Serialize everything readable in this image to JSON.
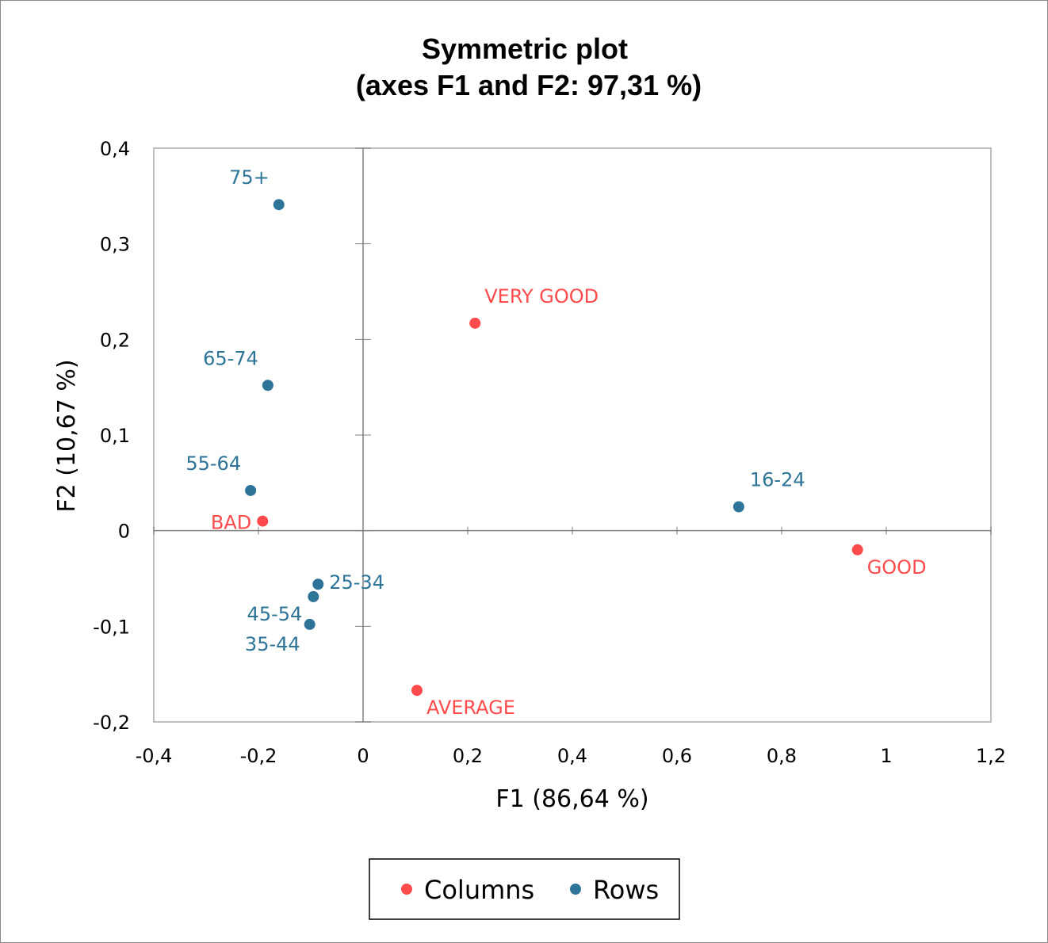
{
  "chart_data": {
    "type": "scatter",
    "title": [
      "Symmetric plot",
      "(axes F1 and F2: 97,31 %)"
    ],
    "xlabel": "F1 (86,64 %)",
    "ylabel": "F2 (10,67 %)",
    "xlim": [
      -0.4,
      1.2
    ],
    "ylim": [
      -0.2,
      0.4
    ],
    "xticks": [
      "-0,4",
      "-0,2",
      "0",
      "0,2",
      "0,4",
      "0,6",
      "0,8",
      "1",
      "1,2"
    ],
    "yticks": [
      "-0,2",
      "-0,1",
      "0",
      "0,1",
      "0,2",
      "0,3",
      "0,4"
    ],
    "grid": false,
    "legend_position": "bottom",
    "series": [
      {
        "name": "Columns",
        "color": "#FF4B4B",
        "points": [
          {
            "label": "VERY GOOD",
            "x": 0.214,
            "y": 0.217
          },
          {
            "label": "GOOD",
            "x": 0.945,
            "y": -0.02
          },
          {
            "label": "AVERAGE",
            "x": 0.103,
            "y": -0.167
          },
          {
            "label": "BAD",
            "x": -0.192,
            "y": 0.01
          }
        ]
      },
      {
        "name": "Rows",
        "color": "#2E7498",
        "points": [
          {
            "label": "16-24",
            "x": 0.718,
            "y": 0.025
          },
          {
            "label": "25-34",
            "x": -0.086,
            "y": -0.056
          },
          {
            "label": "35-44",
            "x": -0.102,
            "y": -0.098
          },
          {
            "label": "45-54",
            "x": -0.095,
            "y": -0.069
          },
          {
            "label": "55-64",
            "x": -0.215,
            "y": 0.042
          },
          {
            "label": "65-74",
            "x": -0.182,
            "y": 0.152
          },
          {
            "label": "75+",
            "x": -0.161,
            "y": 0.341
          }
        ]
      }
    ]
  }
}
